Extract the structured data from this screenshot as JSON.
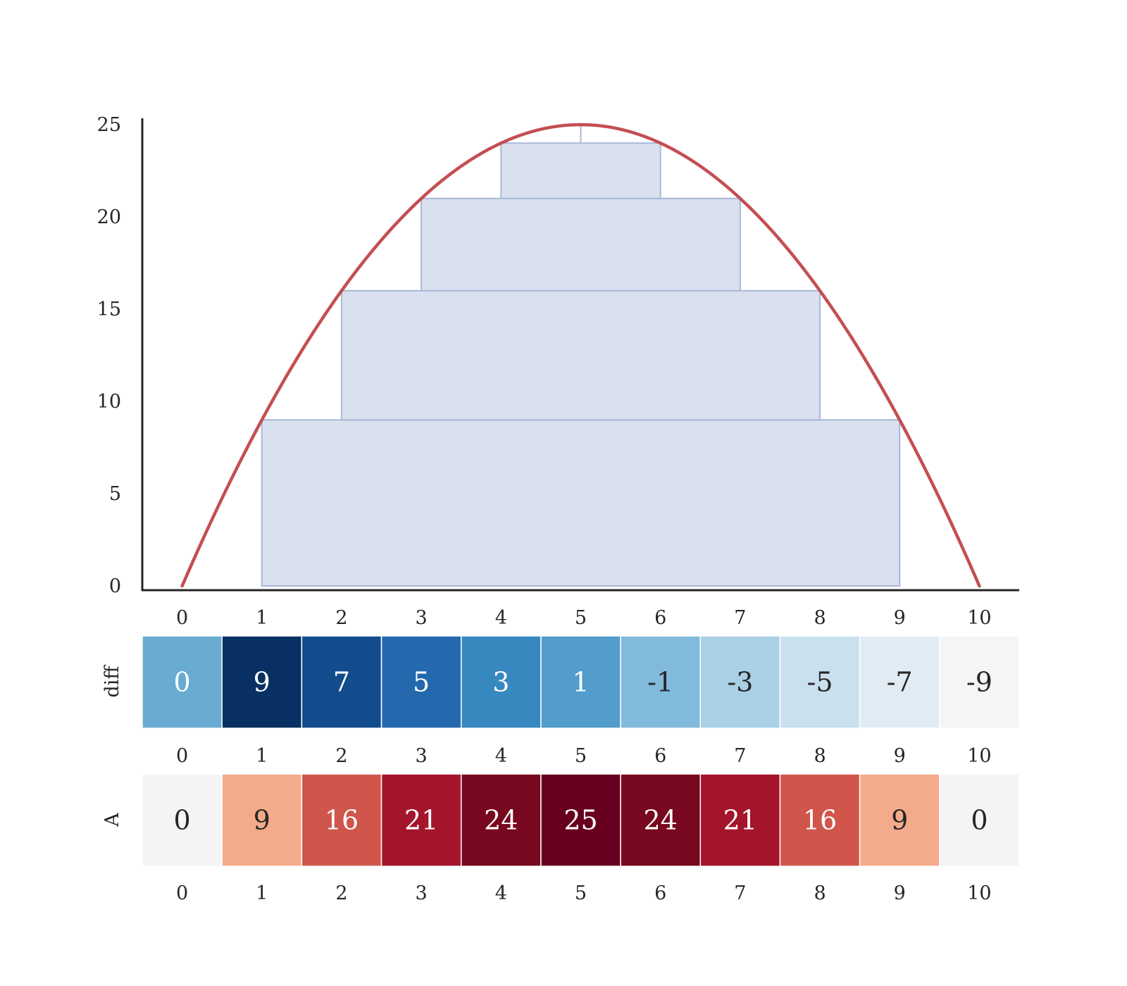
{
  "chart_data": [
    {
      "type": "area",
      "description_kind": "parabola over stacked rectangles",
      "x": [
        0,
        1,
        2,
        3,
        4,
        5,
        6,
        7,
        8,
        9,
        10
      ],
      "curve": [
        0,
        9,
        16,
        21,
        24,
        25,
        24,
        21,
        16,
        9,
        0
      ],
      "curve_color": "#c44e52",
      "rectangles": [
        {
          "x0": 1,
          "x1": 9,
          "y0": 0,
          "y1": 9
        },
        {
          "x0": 2,
          "x1": 8,
          "y0": 9,
          "y1": 16
        },
        {
          "x0": 3,
          "x1": 7,
          "y0": 16,
          "y1": 21
        },
        {
          "x0": 4,
          "x1": 6,
          "y0": 21,
          "y1": 24
        },
        {
          "x0": 5,
          "x1": 5,
          "y0": 24,
          "y1": 25
        }
      ],
      "rect_fill": "#dae1ee",
      "rect_stroke": "#a8b8d8",
      "xlim": [
        -0.5,
        10.5
      ],
      "ylim": [
        0,
        25
      ],
      "xticks": [
        "0",
        "1",
        "2",
        "3",
        "4",
        "5",
        "6",
        "7",
        "8",
        "9",
        "10"
      ],
      "yticks": [
        "0",
        "5",
        "10",
        "15",
        "20",
        "25"
      ],
      "grid": false
    },
    {
      "type": "heatmap",
      "row_label": "diff",
      "colormap": "Blues",
      "values": [
        0,
        9,
        7,
        5,
        3,
        1,
        -1,
        -3,
        -5,
        -7,
        -9
      ],
      "labels": [
        "0",
        "9",
        "7",
        "5",
        "3",
        "1",
        "-1",
        "-3",
        "-5",
        "-7",
        "-9"
      ],
      "colors": [
        "#69abd1",
        "#083063",
        "#124c8c",
        "#2469ae",
        "#3888c0",
        "#529dcc",
        "#82badb",
        "#a9d0e5",
        "#c9e0ee",
        "#e1ebf3",
        "#f4f6f6"
      ],
      "text_colors": [
        "#ffffff",
        "#ffffff",
        "#ffffff",
        "#ffffff",
        "#ffffff",
        "#ffffff",
        "#262626",
        "#262626",
        "#262626",
        "#262626",
        "#262626"
      ],
      "xticks": [
        "0",
        "1",
        "2",
        "3",
        "4",
        "5",
        "6",
        "7",
        "8",
        "9",
        "10"
      ]
    },
    {
      "type": "heatmap",
      "row_label": "A",
      "colormap": "Reds",
      "values": [
        0,
        9,
        16,
        21,
        24,
        25,
        24,
        21,
        16,
        9,
        0
      ],
      "labels": [
        "0",
        "9",
        "16",
        "21",
        "24",
        "25",
        "24",
        "21",
        "16",
        "9",
        "0"
      ],
      "colors": [
        "#f4f4f4",
        "#f4ab8b",
        "#d0554a",
        "#a4152b",
        "#78081f",
        "#67001e",
        "#78081f",
        "#a4152b",
        "#d0554a",
        "#f4ab8b",
        "#f4f4f4"
      ],
      "text_colors": [
        "#262626",
        "#262626",
        "#ffffff",
        "#ffffff",
        "#ffffff",
        "#ffffff",
        "#ffffff",
        "#ffffff",
        "#ffffff",
        "#262626",
        "#262626"
      ],
      "xticks": [
        "0",
        "1",
        "2",
        "3",
        "4",
        "5",
        "6",
        "7",
        "8",
        "9",
        "10"
      ]
    }
  ]
}
